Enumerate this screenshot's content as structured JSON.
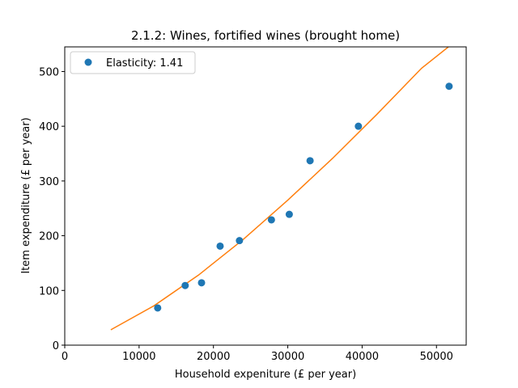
{
  "chart_data": {
    "type": "scatter",
    "title": "2.1.2: Wines, fortified wines (brought home)",
    "xlabel": "Household expeniture (£ per year)",
    "ylabel": "Item expenditure (£ per year)",
    "xlim": [
      0,
      54000
    ],
    "ylim": [
      0,
      545
    ],
    "xticks": [
      0,
      10000,
      20000,
      30000,
      40000,
      50000
    ],
    "yticks": [
      0,
      100,
      200,
      300,
      400,
      500
    ],
    "grid": false,
    "legend_position": "top-left",
    "series": [
      {
        "name": "Elasticity: 1.41",
        "kind": "scatter",
        "color": "#1f77b4",
        "x": [
          12500,
          16200,
          18400,
          20900,
          23500,
          27800,
          30200,
          33000,
          39500,
          51700
        ],
        "y": [
          68,
          109,
          114,
          181,
          191,
          229,
          239,
          337,
          400,
          473
        ]
      },
      {
        "kind": "line",
        "color": "#ff7f0e",
        "elasticity": 1.41,
        "x": [
          6200,
          12000,
          18000,
          24000,
          30000,
          36000,
          42000,
          48000,
          51600
        ],
        "y": [
          28,
          72,
          128,
          193,
          265,
          341,
          422,
          506,
          545
        ]
      }
    ]
  }
}
